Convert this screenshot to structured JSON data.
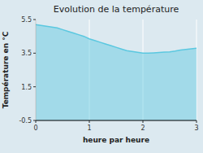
{
  "chart_data": {
    "type": "area",
    "title": "Evolution de la température",
    "x_label": "heure par heure",
    "y_label": "Température en °C",
    "x": [
      0,
      0.1,
      0.2,
      0.3,
      0.4,
      0.5,
      0.6,
      0.7,
      0.8,
      0.9,
      1.0,
      1.1,
      1.2,
      1.3,
      1.4,
      1.5,
      1.6,
      1.7,
      1.8,
      1.9,
      2.0,
      2.1,
      2.2,
      2.3,
      2.4,
      2.5,
      2.6,
      2.7,
      2.8,
      2.9,
      3.0
    ],
    "values": [
      5.2,
      5.15,
      5.1,
      5.05,
      5.0,
      4.9,
      4.8,
      4.7,
      4.6,
      4.5,
      4.35,
      4.25,
      4.15,
      4.05,
      3.95,
      3.85,
      3.75,
      3.65,
      3.6,
      3.55,
      3.5,
      3.5,
      3.52,
      3.54,
      3.56,
      3.58,
      3.62,
      3.68,
      3.72,
      3.76,
      3.8
    ],
    "color": "#5bc8e0",
    "xlim": [
      0,
      3
    ],
    "ylim": [
      -0.5,
      5.5
    ],
    "xticks": [
      0,
      1,
      2,
      3
    ],
    "yticks": [
      -0.5,
      1.5,
      3.5,
      5.5
    ],
    "grid": "x"
  }
}
